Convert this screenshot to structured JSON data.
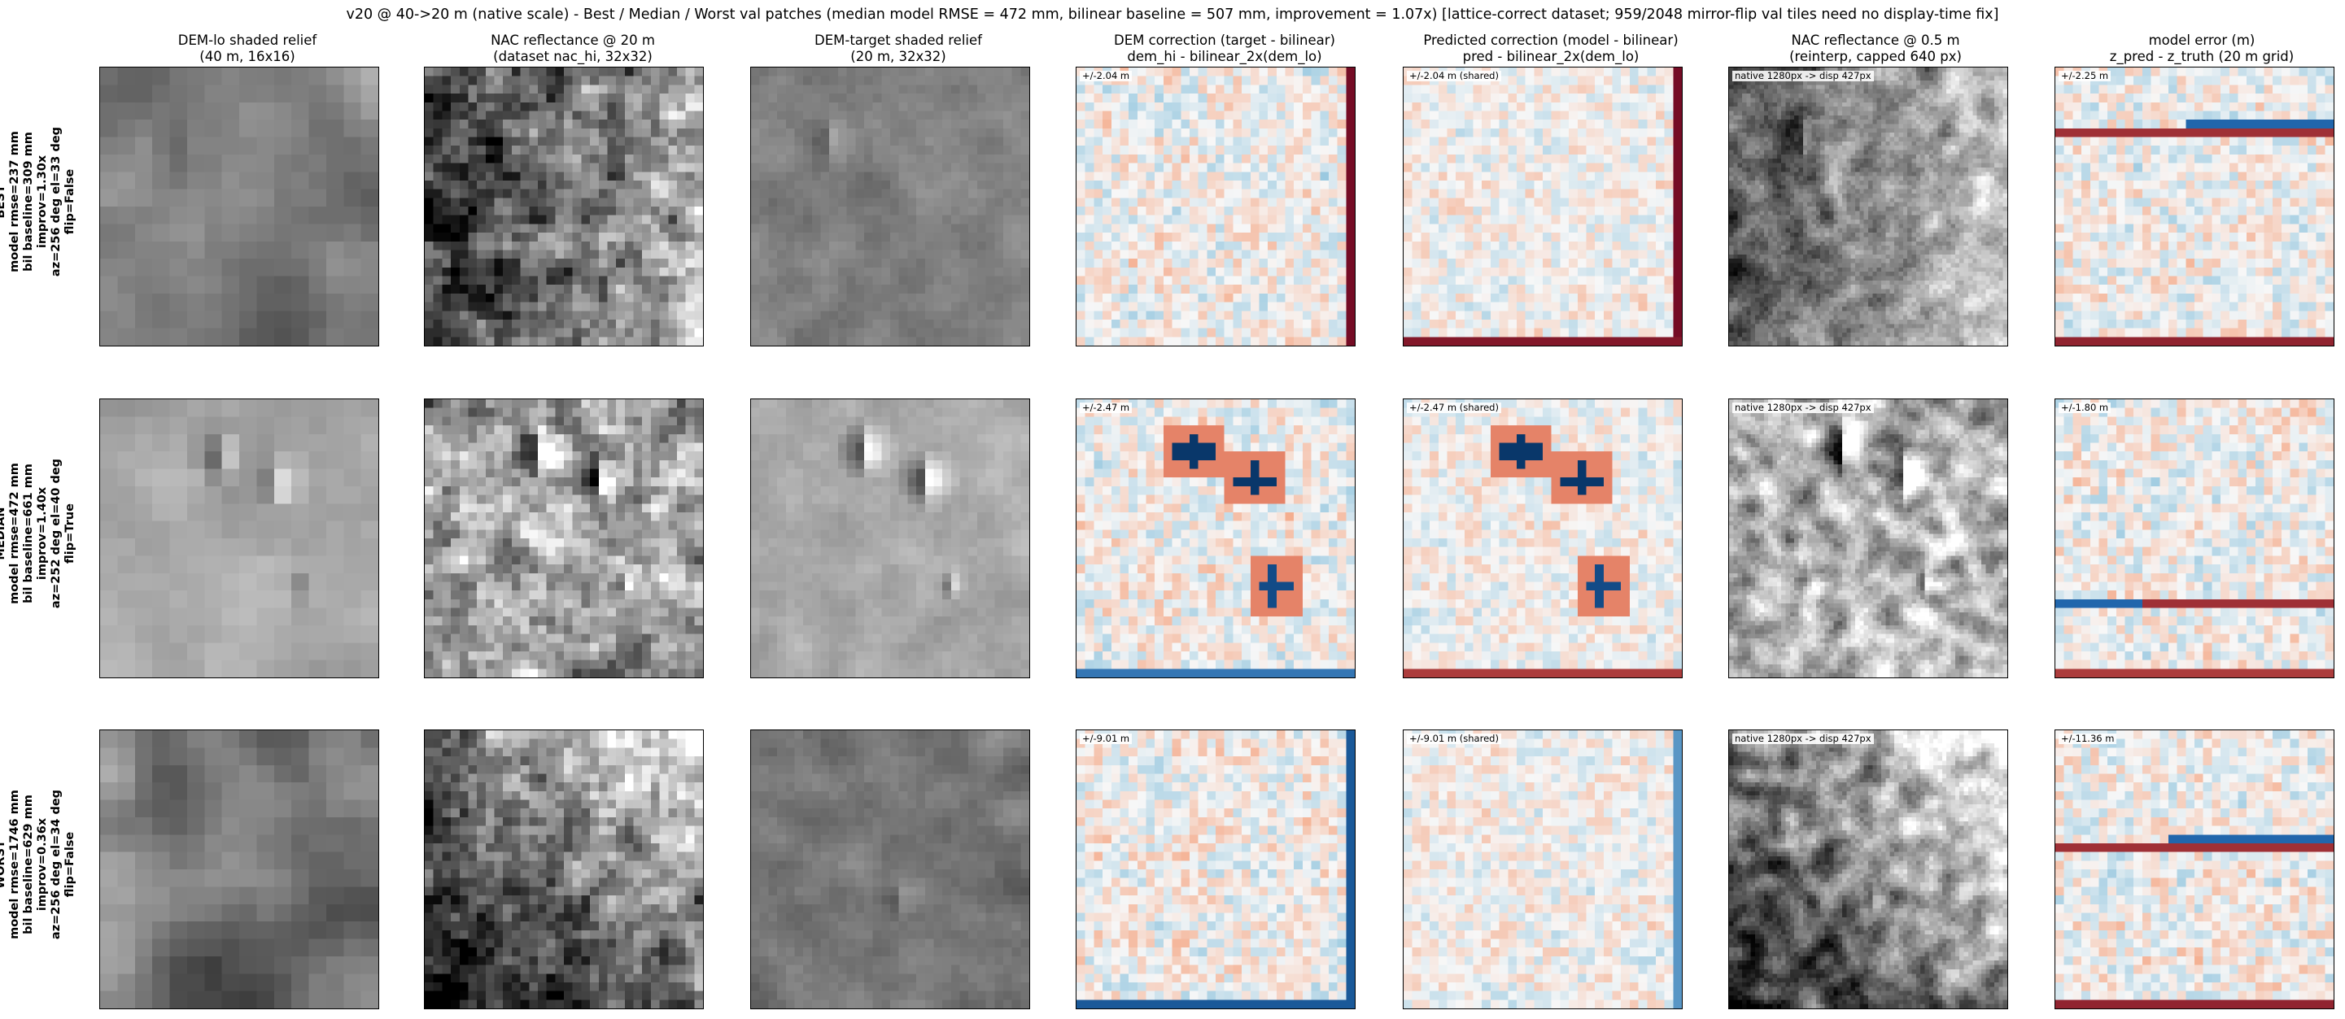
{
  "title": "v20 @ 40->20 m (native scale) - Best / Median / Worst val patches  (median model RMSE = 472 mm, bilinear baseline = 507 mm, improvement = 1.07x)  [lattice-correct dataset; 959/2048 mirror-flip val tiles need no display-time fix]",
  "columns": [
    {
      "line1": "DEM-lo shaded relief",
      "line2": "(40 m, 16x16)"
    },
    {
      "line1": "NAC reflectance @ 20 m",
      "line2": "(dataset nac_hi, 32x32)"
    },
    {
      "line1": "DEM-target shaded relief",
      "line2": "(20 m, 32x32)"
    },
    {
      "line1": "DEM correction (target - bilinear)",
      "line2": "dem_hi - bilinear_2x(dem_lo)"
    },
    {
      "line1": "Predicted correction (model - bilinear)",
      "line2": "pred - bilinear_2x(dem_lo)"
    },
    {
      "line1": "NAC reflectance @ 0.5 m",
      "line2": "(reinterp, capped 640 px)"
    },
    {
      "line1": "model error (m)",
      "line2": "z_pred - z_truth (20 m grid)"
    }
  ],
  "rows": [
    {
      "label": "BEST",
      "rmse": "model rmse=237 mm",
      "baseline": "bil baseline=309 mm",
      "improv": "improv=1.30x",
      "sun": "az=256 deg el=33 deg",
      "flip": "flip=False",
      "tags": [
        "+/-2.04 m",
        "+/-2.04 m (shared)",
        "native 1280px -> disp 427px",
        "+/-2.25 m"
      ]
    },
    {
      "label": "MEDIAN",
      "rmse": "model rmse=472 mm",
      "baseline": "bil baseline=661 mm",
      "improv": "improv=1.40x",
      "sun": "az=252 deg el=40 deg",
      "flip": "flip=True",
      "tags": [
        "+/-2.47 m",
        "+/-2.47 m (shared)",
        "native 1280px -> disp 427px",
        "+/-1.80 m"
      ]
    },
    {
      "label": "WORST",
      "rmse": "model rmse=1746 mm",
      "baseline": "bil baseline=629 mm",
      "improv": "improv=0.36x",
      "sun": "az=256 deg el=34 deg",
      "flip": "flip=False",
      "tags": [
        "+/-9.01 m",
        "+/-9.01 m (shared)",
        "native 1280px -> disp 427px",
        "+/-11.36 m"
      ]
    }
  ],
  "chart_data": {
    "type": "heatmap",
    "grid": "3 rows x 7 columns of image panels",
    "colormaps": {
      "relief": "gray",
      "reflectance": "gray",
      "correction": "RdBu_r (diverging, symmetric)",
      "error": "RdBu_r (diverging, symmetric)"
    },
    "panel_sizes_cells": [
      16,
      32,
      32,
      32,
      32,
      64,
      32
    ],
    "color_limits_m": {
      "best": {
        "correction": 2.04,
        "predicted": 2.04,
        "error": 2.25
      },
      "median": {
        "correction": 2.47,
        "predicted": 2.47,
        "error": 1.8
      },
      "worst": {
        "correction": 9.01,
        "predicted": 9.01,
        "error": 11.36
      }
    },
    "colors": {
      "neg_strong": "#08306b",
      "neg": "#2166ac",
      "neutral": "#f7f7f7",
      "pos": "#d6604d",
      "pos_strong": "#67001f"
    }
  }
}
